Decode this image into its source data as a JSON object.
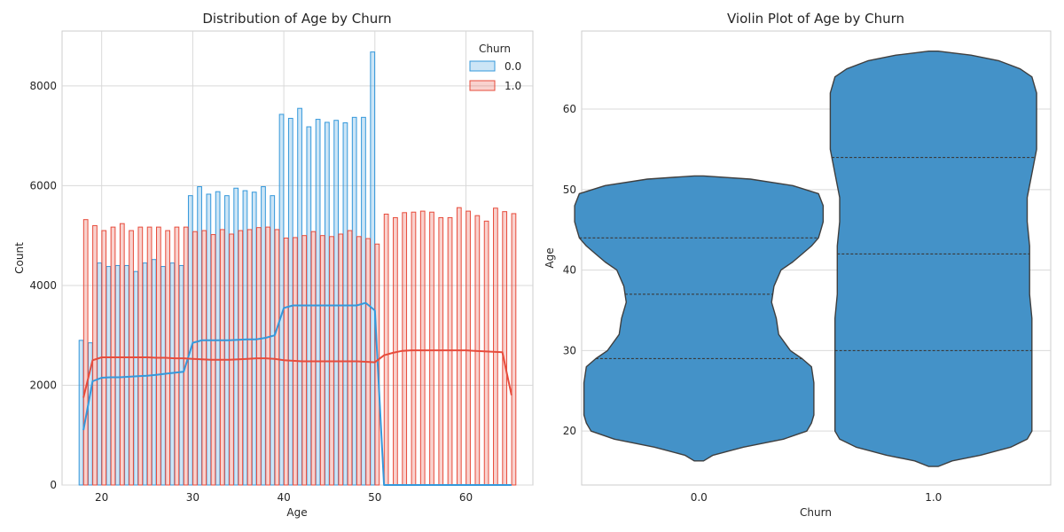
{
  "chart_data": [
    {
      "type": "histogram",
      "title": "Distribution of Age by Churn",
      "xlabel": "Age",
      "ylabel": "Count",
      "xlim": [
        15.65,
        67.35
      ],
      "ylim": [
        0,
        9100
      ],
      "xticks": [
        "20",
        "30",
        "40",
        "50",
        "60"
      ],
      "yticks": [
        "0",
        "2000",
        "4000",
        "6000",
        "8000"
      ],
      "grid": true,
      "legend": {
        "title": "Churn",
        "placement": "top-right"
      },
      "bins": [
        18,
        19,
        20,
        21,
        22,
        23,
        24,
        25,
        26,
        27,
        28,
        29,
        30,
        31,
        32,
        33,
        34,
        35,
        36,
        37,
        38,
        39,
        40,
        41,
        42,
        43,
        44,
        45,
        46,
        47,
        48,
        49,
        50,
        51,
        52,
        53,
        54,
        55,
        56,
        57,
        58,
        59,
        60,
        61,
        62,
        63,
        64,
        65
      ],
      "series": [
        {
          "name": "0.0",
          "color": "#3498db",
          "values": [
            2900,
            2850,
            4450,
            4380,
            4400,
            4400,
            4280,
            4450,
            4520,
            4380,
            4450,
            4400,
            5800,
            5980,
            5830,
            5880,
            5800,
            5950,
            5900,
            5870,
            5980,
            5800,
            7430,
            7350,
            7550,
            7180,
            7330,
            7270,
            7310,
            7260,
            7370,
            7370,
            8680,
            0,
            0,
            0,
            0,
            0,
            0,
            0,
            0,
            0,
            0,
            0,
            0,
            0,
            0,
            0
          ],
          "kde": [
            1100,
            2080,
            2150,
            2160,
            2160,
            2170,
            2180,
            2190,
            2210,
            2230,
            2250,
            2270,
            2850,
            2900,
            2900,
            2900,
            2900,
            2910,
            2920,
            2920,
            2950,
            3000,
            3550,
            3600,
            3600,
            3600,
            3600,
            3600,
            3600,
            3600,
            3600,
            3650,
            3500,
            0,
            0,
            0,
            0,
            0,
            0,
            0,
            0,
            0,
            0,
            0,
            0,
            0,
            0,
            0
          ]
        },
        {
          "name": "1.0",
          "color": "#e74c3c",
          "values": [
            5320,
            5200,
            5100,
            5170,
            5240,
            5100,
            5170,
            5170,
            5170,
            5100,
            5170,
            5170,
            5080,
            5100,
            5020,
            5120,
            5030,
            5100,
            5120,
            5160,
            5170,
            5120,
            4950,
            4960,
            5000,
            5080,
            5000,
            4980,
            5030,
            5100,
            4980,
            4940,
            4830,
            5430,
            5360,
            5460,
            5470,
            5490,
            5470,
            5360,
            5360,
            5560,
            5490,
            5400,
            5290,
            5550,
            5480,
            5440
          ],
          "kde": [
            1750,
            2500,
            2560,
            2560,
            2560,
            2560,
            2560,
            2560,
            2550,
            2550,
            2540,
            2540,
            2530,
            2520,
            2510,
            2510,
            2510,
            2520,
            2530,
            2540,
            2540,
            2530,
            2500,
            2490,
            2480,
            2480,
            2480,
            2480,
            2480,
            2480,
            2480,
            2470,
            2460,
            2600,
            2650,
            2690,
            2700,
            2700,
            2700,
            2700,
            2700,
            2700,
            2700,
            2690,
            2680,
            2670,
            2660,
            1800
          ]
        }
      ]
    },
    {
      "type": "violin",
      "title": "Violin Plot of Age by Churn",
      "xlabel": "Churn",
      "ylabel": "Age",
      "ylim": [
        13.3,
        69.7
      ],
      "categories": [
        "0.0",
        "1.0"
      ],
      "yticks": [
        "20",
        "30",
        "40",
        "50",
        "60"
      ],
      "grid": true,
      "color": "#4492c8",
      "violins": [
        {
          "category": "0.0",
          "quartiles": [
            29,
            37,
            44
          ],
          "profile_age": [
            16.3,
            17,
            18,
            19,
            20,
            21,
            22,
            24,
            26,
            28,
            29,
            30,
            32,
            34,
            36,
            38,
            40,
            41,
            42,
            43,
            44,
            45,
            46,
            48,
            49.5,
            50.5,
            51.3,
            51.7
          ],
          "profile_halfwidth": [
            0.02,
            0.06,
            0.19,
            0.36,
            0.46,
            0.48,
            0.49,
            0.49,
            0.49,
            0.48,
            0.44,
            0.39,
            0.34,
            0.33,
            0.31,
            0.32,
            0.35,
            0.4,
            0.44,
            0.48,
            0.51,
            0.52,
            0.53,
            0.53,
            0.51,
            0.4,
            0.22,
            0.02
          ]
        },
        {
          "category": "1.0",
          "quartiles": [
            30,
            42,
            54
          ],
          "profile_age": [
            15.6,
            16.3,
            17,
            18,
            19,
            20,
            22,
            25,
            28,
            31,
            34,
            37,
            40,
            43,
            46,
            49,
            52,
            55,
            58,
            60,
            62,
            64,
            65,
            66,
            66.7,
            67.2
          ],
          "profile_halfwidth": [
            0.02,
            0.08,
            0.2,
            0.33,
            0.4,
            0.42,
            0.42,
            0.42,
            0.42,
            0.42,
            0.42,
            0.41,
            0.41,
            0.41,
            0.4,
            0.4,
            0.42,
            0.44,
            0.44,
            0.44,
            0.44,
            0.42,
            0.37,
            0.28,
            0.16,
            0.02
          ]
        }
      ]
    }
  ]
}
